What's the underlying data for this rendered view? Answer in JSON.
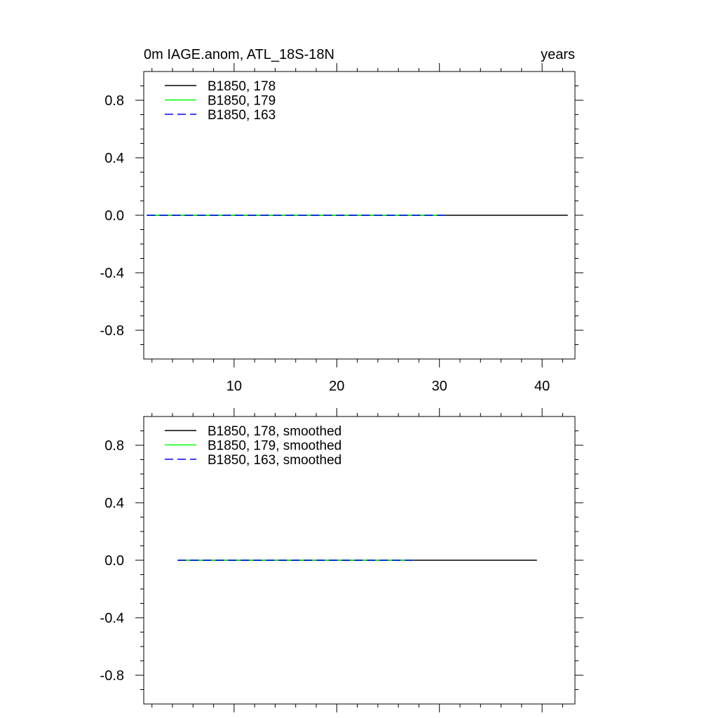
{
  "chart_data": [
    {
      "type": "line",
      "title_left": "0m IAGE.anom, ATL_18S-18N",
      "title_right": "years",
      "xlim": [
        1.2,
        43.2
      ],
      "ylim": [
        -1.0,
        1.0
      ],
      "x_ticks": [
        10,
        20,
        30,
        40
      ],
      "x_tick_labels": [
        "10",
        "20",
        "30",
        "40"
      ],
      "show_x_tick_labels": true,
      "y_ticks": [
        0.8,
        0.4,
        0.0,
        -0.4,
        -0.8
      ],
      "y_tick_labels": [
        "0.8",
        "0.4",
        "0.0",
        "-0.4",
        "-0.8"
      ],
      "grid": false,
      "legend_position": "top-left",
      "series": [
        {
          "name": "B1850, 178",
          "color": "#000000",
          "dash": "solid",
          "x": [
            1.5,
            42.5
          ],
          "y": [
            0.0,
            0.0
          ]
        },
        {
          "name": "B1850, 179",
          "color": "#00ff00",
          "dash": "solid",
          "x": [
            1.5,
            30.5
          ],
          "y": [
            0.0,
            0.0
          ]
        },
        {
          "name": "B1850, 163",
          "color": "#0000ff",
          "dash": "dashed",
          "x": [
            1.5,
            30.5
          ],
          "y": [
            0.0,
            0.0
          ]
        }
      ]
    },
    {
      "type": "line",
      "title_left": "",
      "title_right": "",
      "xlim": [
        1.2,
        43.2
      ],
      "ylim": [
        -1.0,
        1.0
      ],
      "x_ticks": [
        10,
        20,
        30,
        40
      ],
      "x_tick_labels": [
        "10",
        "20",
        "30",
        "40"
      ],
      "show_x_tick_labels": false,
      "y_ticks": [
        0.8,
        0.4,
        0.0,
        -0.4,
        -0.8
      ],
      "y_tick_labels": [
        "0.8",
        "0.4",
        "0.0",
        "-0.4",
        "-0.8"
      ],
      "grid": false,
      "legend_position": "top-left",
      "series": [
        {
          "name": "B1850, 178, smoothed",
          "color": "#000000",
          "dash": "solid",
          "x": [
            4.5,
            39.5
          ],
          "y": [
            0.0,
            0.0
          ]
        },
        {
          "name": "B1850, 179, smoothed",
          "color": "#00ff00",
          "dash": "solid",
          "x": [
            4.5,
            27.5
          ],
          "y": [
            0.0,
            0.0
          ]
        },
        {
          "name": "B1850, 163, smoothed",
          "color": "#0000ff",
          "dash": "dashed",
          "x": [
            4.5,
            27.5
          ],
          "y": [
            0.0,
            0.0
          ]
        }
      ]
    }
  ]
}
